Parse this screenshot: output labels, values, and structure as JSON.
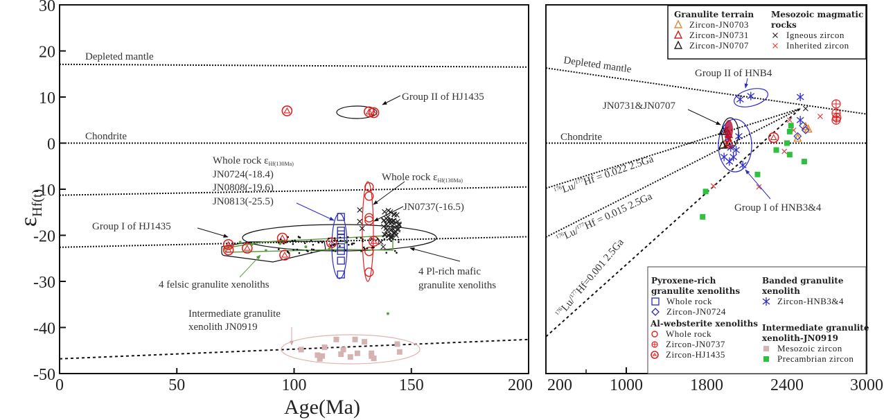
{
  "chart_data": [
    {
      "type": "scatter",
      "panel": "left",
      "title": "",
      "xlabel": "Age(Ma)",
      "ylabel": "εHf(t)",
      "xlim": [
        0,
        200
      ],
      "ylim": [
        -50,
        30
      ],
      "xticks": [
        0,
        50,
        100,
        150,
        200
      ],
      "yticks": [
        30,
        20,
        10,
        0,
        -10,
        -20,
        -30,
        -40,
        -50
      ],
      "reference_lines": [
        {
          "name": "Depleted mantle",
          "label": "Depleted mantle",
          "x": [
            0,
            200
          ],
          "y": [
            17.1,
            16.5
          ],
          "style": "dotted"
        },
        {
          "name": "Chondrite",
          "label": "Chondrite",
          "x": [
            0,
            200
          ],
          "y": [
            0,
            0
          ],
          "style": "dotted"
        },
        {
          "name": "evolution-line-1",
          "label": "",
          "x": [
            0,
            200
          ],
          "y": [
            -11.3,
            -9.5
          ],
          "style": "dotted"
        },
        {
          "name": "evolution-line-2",
          "label": "",
          "x": [
            0,
            200
          ],
          "y": [
            -22.6,
            -20.3
          ],
          "style": "dotted"
        },
        {
          "name": "evolution-line-3",
          "label": "",
          "x": [
            0,
            200
          ],
          "y": [
            -46.8,
            -42.6
          ],
          "style": "dashed"
        }
      ],
      "series": [
        {
          "name": "Zircon-HJ1435 Group II",
          "marker": "circled-triangle",
          "color": "#e02020",
          "points": [
            [
              97,
              7
            ],
            [
              132,
              6.8
            ],
            [
              134,
              6.6
            ]
          ]
        },
        {
          "name": "Zircon-HJ1435 Group I",
          "marker": "circled-triangle",
          "color": "#e02020",
          "points": [
            [
              72,
              -22
            ],
            [
              72,
              -23.2
            ],
            [
              80,
              -22.8
            ],
            [
              95,
              -20.6
            ],
            [
              96,
              -24.3
            ],
            [
              116,
              -21.6
            ],
            [
              134,
              -21.3
            ]
          ]
        },
        {
          "name": "Pyroxene-rich whole rock (JN0724/JN0808/JN0813)",
          "marker": "square",
          "color": "#2a2aa8",
          "points": [
            [
              120,
              -16
            ],
            [
              120,
              -19
            ],
            [
              120,
              -19.8
            ],
            [
              120,
              -20.6
            ],
            [
              120,
              -22.6
            ],
            [
              120,
              -23.4
            ],
            [
              120,
              -25.5
            ],
            [
              120,
              -28.5
            ]
          ]
        },
        {
          "name": "Al-websterite whole rock",
          "marker": "circle",
          "color": "#e02020",
          "points": [
            [
              132,
              -9.5
            ],
            [
              132,
              -11.5
            ],
            [
              132,
              -16.2
            ],
            [
              132,
              -16.8
            ],
            [
              132,
              -23.5
            ],
            [
              132,
              -28
            ]
          ]
        },
        {
          "name": "Mesozoic zircon (JN0919)",
          "marker": "square-filled",
          "color": "#d6b3b3",
          "points": [
            [
              103,
              -44.8
            ],
            [
              110,
              -46
            ],
            [
              111,
              -46.8
            ],
            [
              112,
              -46.2
            ],
            [
              113,
              -44.3
            ],
            [
              118,
              -42.6
            ],
            [
              120,
              -45.8
            ],
            [
              121,
              -44.8
            ],
            [
              124,
              -46.4
            ],
            [
              126,
              -42.6
            ],
            [
              127,
              -45.6
            ],
            [
              130,
              -43.1
            ],
            [
              133,
              -45.6
            ],
            [
              133,
              -46.2
            ],
            [
              134,
              -46.7
            ],
            [
              144,
              -43.6
            ],
            [
              145,
              -45.3
            ]
          ]
        },
        {
          "name": "Mafic granulite zircon (black crosses)",
          "marker": "x",
          "color": "#222222",
          "points": [
            [
              128,
              -14.5
            ],
            [
              128,
              -17
            ],
            [
              129,
              -18.5
            ],
            [
              140,
              -16
            ],
            [
              141,
              -17.5
            ],
            [
              142,
              -18.5
            ],
            [
              143,
              -19.5
            ],
            [
              137,
              -21.5
            ],
            [
              138,
              -22.5
            ]
          ]
        },
        {
          "name": "Felsic granulite zircon (green dots)",
          "marker": "dot",
          "color": "#5aa03a",
          "points": [
            [
              77,
              -21.5
            ],
            [
              82,
              -22
            ],
            [
              88,
              -23.3
            ],
            [
              94,
              -21.8
            ],
            [
              105,
              -22.5
            ],
            [
              115,
              -23
            ],
            [
              122,
              -21.5
            ],
            [
              140,
              -37
            ]
          ]
        }
      ],
      "annotations": [
        "Depleted mantle",
        "Chondrite",
        "Group II of HJ1435",
        "Whole rock εHf(130Ma)",
        "JN0724(-18.4)",
        "JN0808(-19.6)",
        "JN0813(-25.5)",
        "Whole rock εHf(130Ma)",
        "JN0737(-16.5)",
        "Group I of HJ1435",
        "4 felsic granulite xenoliths",
        "4 Pl-rich mafic granulite xenoliths",
        "Intermediate granulite xenolith JN0919"
      ]
    },
    {
      "type": "scatter",
      "panel": "right",
      "title": "",
      "xlabel": "",
      "ylabel": "",
      "xlim": [
        200,
        3000
      ],
      "ylim": [
        -50,
        30
      ],
      "xticks": [
        200,
        1000,
        1800,
        2400,
        3000
      ],
      "reference_lines": [
        {
          "name": "Depleted mantle",
          "label": "Depleted mantle",
          "x": [
            200,
            3000
          ],
          "y": [
            16.3,
            6.3
          ],
          "style": "dotted"
        },
        {
          "name": "Chondrite",
          "label": "Chondrite",
          "x": [
            200,
            3000
          ],
          "y": [
            0,
            0
          ],
          "style": "dotted"
        },
        {
          "name": "Lu/Hf 0.022",
          "label": "176Lu/177Hf = 0.022  2.5Ga",
          "x": [
            200,
            2500
          ],
          "y": [
            -9.8,
            7.5
          ],
          "style": "dotted"
        },
        {
          "name": "Lu/Hf 0.015",
          "label": "176Lu/177Hf = 0.015  2.5Ga",
          "x": [
            200,
            2500
          ],
          "y": [
            -20.4,
            7.5
          ],
          "style": "dotted"
        },
        {
          "name": "Lu/Hf 0.001",
          "label": "176Lu/177Hf=0.001  2.5Ga",
          "x": [
            200,
            2500
          ],
          "y": [
            -42,
            7.5
          ],
          "style": "dashed"
        }
      ],
      "series": [
        {
          "name": "Zircon-HNB3&4",
          "marker": "asterisk",
          "color": "#2a2ad0",
          "points": [
            [
              2050,
              9.5
            ],
            [
              2130,
              10.2
            ],
            [
              2500,
              10
            ],
            [
              2500,
              5
            ],
            [
              1940,
              3
            ],
            [
              1960,
              1
            ],
            [
              1980,
              -1
            ],
            [
              2000,
              -3
            ],
            [
              1930,
              -3
            ],
            [
              2020,
              -1.5
            ],
            [
              1970,
              -4
            ],
            [
              2070,
              -4.8
            ],
            [
              2040,
              1.5
            ]
          ]
        },
        {
          "name": "Zircon-JN0731",
          "marker": "triangle",
          "color": "#cc1010",
          "points": [
            [
              1950,
              2.5
            ],
            [
              1960,
              1
            ],
            [
              1970,
              0
            ],
            [
              1950,
              -0.5
            ],
            [
              1965,
              1.8
            ]
          ]
        },
        {
          "name": "Zircon-JN0707",
          "marker": "triangle",
          "color": "#111111",
          "points": [
            [
              1920,
              2.5
            ],
            [
              1920,
              -0.5
            ]
          ]
        },
        {
          "name": "Zircon-JN0703",
          "marker": "triangle",
          "color": "#e88020",
          "points": [
            [
              2540,
              3.5
            ],
            [
              2560,
              3
            ],
            [
              2480,
              1
            ]
          ]
        },
        {
          "name": "Zircon-JN0724",
          "marker": "diamond",
          "color": "#4040b0",
          "points": [
            [
              2520,
              3.8
            ],
            [
              2540,
              2.8
            ],
            [
              2480,
              1.5
            ]
          ]
        },
        {
          "name": "Zircon-JN0737",
          "marker": "circled-cross",
          "color": "#e02020",
          "points": [
            [
              2770,
              8.5
            ],
            [
              2770,
              6.5
            ],
            [
              2775,
              5.5
            ],
            [
              2770,
              5
            ]
          ]
        },
        {
          "name": "Whole rock (Al-websterite)",
          "marker": "circled-triangle",
          "color": "#e02020",
          "points": [
            [
              2300,
              1.2
            ]
          ]
        },
        {
          "name": "Igneous zircon",
          "marker": "x",
          "color": "#222222",
          "points": [
            [
              2540,
              7.5
            ]
          ]
        },
        {
          "name": "Inherited zircon",
          "marker": "x",
          "color": "#e04040",
          "points": [
            [
              2420,
              5
            ],
            [
              2650,
              5.8
            ],
            [
              2380,
              -1.8
            ],
            [
              2450,
              2.8
            ],
            [
              2190,
              -9.5
            ],
            [
              1850,
              -9.3
            ]
          ]
        },
        {
          "name": "Precambrian zircon",
          "marker": "square-filled",
          "color": "#30c040",
          "points": [
            [
              2430,
              3.8
            ],
            [
              2420,
              2.5
            ],
            [
              2400,
              0
            ],
            [
              2320,
              -1.5
            ],
            [
              2420,
              -2.5
            ],
            [
              2530,
              -4
            ],
            [
              2180,
              -6.8
            ],
            [
              1790,
              -10.5
            ],
            [
              1760,
              -16
            ]
          ]
        }
      ],
      "legend_top": {
        "placement": "top-right",
        "groups": [
          {
            "title": "Granulite terrain",
            "items": [
              {
                "label": "Zircon-JN0703",
                "marker": "triangle",
                "color": "#e08a3a"
              },
              {
                "label": "Zircon-JN0731",
                "marker": "triangle",
                "color": "#cc2020"
              },
              {
                "label": "Zircon-JN0707",
                "marker": "triangle",
                "color": "#222222"
              }
            ]
          },
          {
            "title": "Mesozoic magmatic rocks",
            "items": [
              {
                "label": "Igneous zircon",
                "marker": "x",
                "color": "#222222"
              },
              {
                "label": "Inherited zircon",
                "marker": "x",
                "color": "#e04040"
              }
            ]
          }
        ]
      },
      "legend_bottom": {
        "placement": "bottom-right",
        "groups": [
          {
            "title": "Pyroxene-rich granulite xenoliths",
            "items": [
              {
                "label": "Whole rock",
                "marker": "square",
                "color": "#2a2aa8"
              },
              {
                "label": "Zircon-JN0724",
                "marker": "diamond",
                "color": "#2a2aa8"
              }
            ]
          },
          {
            "title": "Al-websterite xenoliths",
            "items": [
              {
                "label": "Whole rock",
                "marker": "circle",
                "color": "#e02020"
              },
              {
                "label": "Zircon-JN0737",
                "marker": "circled-cross",
                "color": "#e02020"
              },
              {
                "label": "Zircon-HJ1435",
                "marker": "circled-triangle",
                "color": "#e02020"
              }
            ]
          },
          {
            "title": "Banded granulite xenolith",
            "items": [
              {
                "label": "Zircon-HNB3&4",
                "marker": "asterisk",
                "color": "#2a2ad0"
              }
            ]
          },
          {
            "title": "Intermediate granulite xenolith-JN0919",
            "items": [
              {
                "label": "Mesozoic zircon",
                "marker": "square-filled",
                "color": "#d6b3b3"
              },
              {
                "label": "Precambrian zircon",
                "marker": "square-filled",
                "color": "#30c040"
              }
            ]
          }
        ]
      },
      "annotations": [
        "Depleted mantle",
        "Group II of HNB4",
        "JN0731&JN0707",
        "Chondrite",
        "Group I of HNB3&4",
        "176Lu/177Hf = 0.022  2.5Ga",
        "176Lu/177Hf = 0.015  2.5Ga",
        "176Lu/177Hf=0.001  2.5Ga"
      ]
    }
  ],
  "labels": {
    "ylabel_main": "ε",
    "ylabel_sub": "Hf(t)",
    "xlabel": "Age(Ma)",
    "left": {
      "depleted_mantle": "Depleted mantle",
      "chondrite": "Chondrite",
      "group2": "Group II of HJ1435",
      "wr_title_a": "Whole rock ε",
      "wr_title_sub": "Hf(130Ma)",
      "jn0724": "JN0724(-18.4)",
      "jn0808": "JN0808(-19.6)",
      "jn0813": "JN0813(-25.5)",
      "wr2_title_a": "Whole rock ε",
      "wr2_title_sub": "Hf(130Ma)",
      "jn0737": "JN0737(-16.5)",
      "group1": "Group I of HJ1435",
      "felsic": "4 felsic granulite xenoliths",
      "mafic_1": "4 Pl-rich mafic",
      "mafic_2": "granulite xenoliths",
      "inter_1": "Intermediate granulite",
      "inter_2": "xenolith JN0919"
    },
    "right": {
      "depleted_mantle": "Depleted mantle",
      "group2": "Group II of HNB4",
      "jn0731": "JN0731&JN0707",
      "chondrite": "Chondrite",
      "group1": "Group I of HNB3&4",
      "lu1_pre": "176",
      "lu1_mid": "Lu/",
      "lu1_sup": "177",
      "lu1_post": "Hf = 0.022   2.5Ga",
      "lu2_post": "Hf = 0.015   2.5Ga",
      "lu3_post": "Hf=0.001   2.5Ga"
    }
  }
}
